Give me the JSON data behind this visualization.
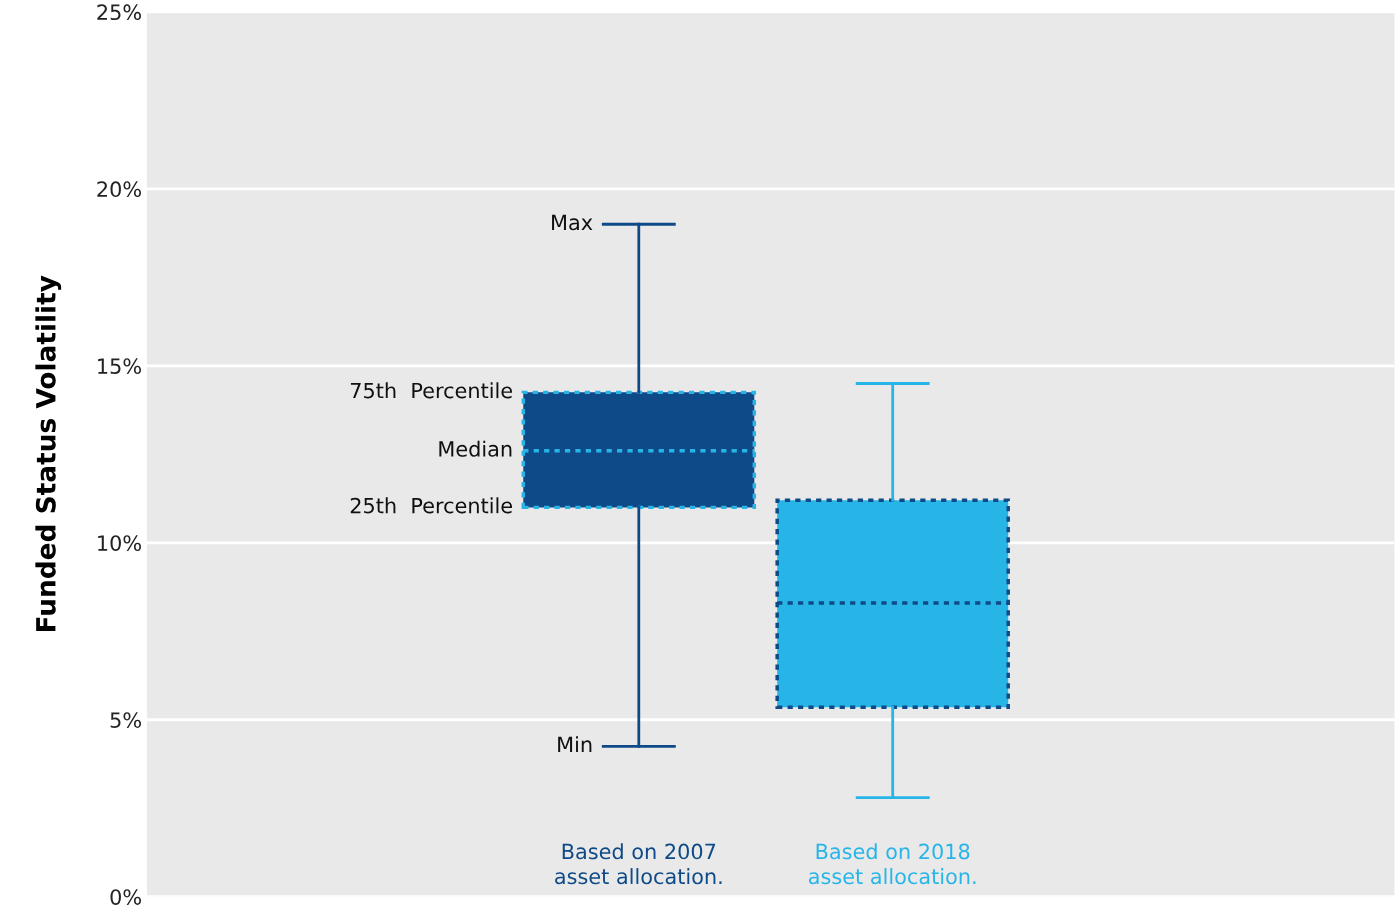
{
  "chart_data": {
    "type": "box",
    "ylabel": "Funded Status Volatility",
    "categories": [
      "Based on 2007\nasset allocation.",
      "Based on 2018\nasset allocation."
    ],
    "colors": [
      "#0e4a87",
      "#27b5e8"
    ],
    "boxes": [
      {
        "low": 4.25,
        "q1": 11.0,
        "median": 12.6,
        "q3": 14.25,
        "high": 19.0
      },
      {
        "low": 2.8,
        "q1": 5.35,
        "median": 8.3,
        "q3": 11.2,
        "high": 14.5
      }
    ],
    "ylim": [
      0,
      25
    ],
    "yticks": [
      {
        "value": 0,
        "label": "0%"
      },
      {
        "value": 5,
        "label": "5%"
      },
      {
        "value": 10,
        "label": "10%"
      },
      {
        "value": 15,
        "label": "15%"
      },
      {
        "value": 20,
        "label": "20%"
      },
      {
        "value": 25,
        "label": "25%"
      }
    ],
    "grid": "y",
    "tick_labels": "y",
    "annotations": [
      "Max",
      "75th  Percentile",
      "Median",
      "25th  Percentile",
      "Min"
    ]
  }
}
